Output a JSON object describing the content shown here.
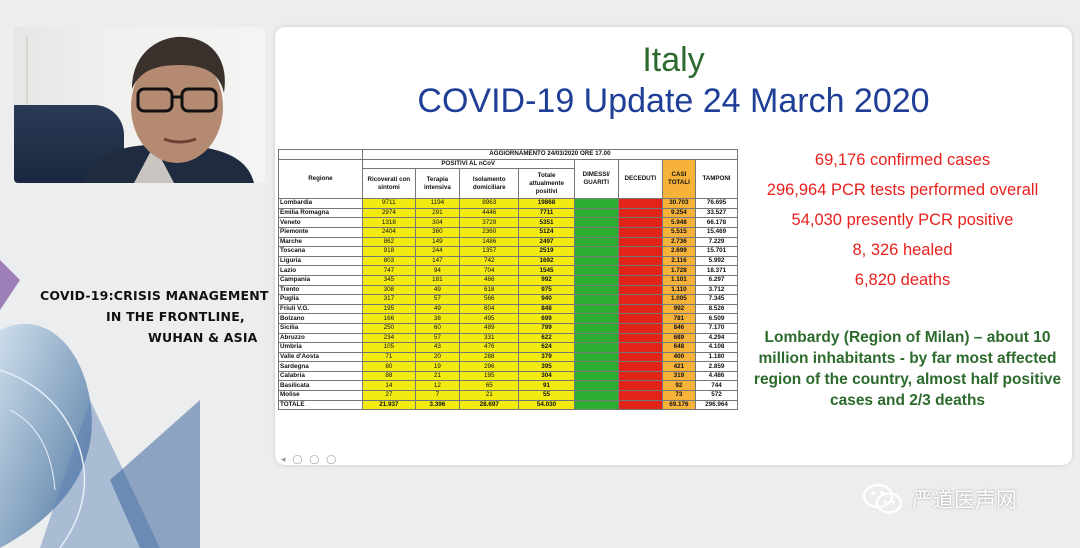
{
  "session": {
    "title_lines": [
      "COVID-19:CRISIS MANAGEMENT",
      "IN THE FRONTLINE,",
      "WUHAN & ASIA"
    ]
  },
  "slide": {
    "country": "Italy",
    "title": "COVID-19 Update 24 March 2020",
    "stats": [
      "69,176 confirmed cases",
      "296,964 PCR tests performed overall",
      "54,030 presently PCR positive",
      "8, 326 healed",
      "6,820 deaths"
    ],
    "lombardy_note": "Lombardy (Region of Milan) – about 10 million inhabitants - by far most affected region of the country, almost half positive cases and 2/3 deaths",
    "colors": {
      "title_blue": "#1f3f97",
      "country_green": "#2d6a2d",
      "stats_red": "#e8211d"
    }
  },
  "table": {
    "caption": "AGGIORNAMENTO 24/03/2020 ORE 17.00",
    "group_header": "POSITIVI AL nCoV",
    "headers": {
      "regione": "Regione",
      "ricoverati": "Ricoverati con sintomi",
      "terapia": "Terapia intensiva",
      "isolamento": "Isolamento domiciliare",
      "totale": "Totale attualmente positivi",
      "dimessi": "DIMESSI/ GUARITI",
      "deceduti": "DECEDUTI",
      "casi": "CASI TOTALI",
      "tamponi": "TAMPONI"
    },
    "rows": [
      [
        "Lombardia",
        "9711",
        "1194",
        "8963",
        "19868",
        "",
        "",
        "30.703",
        "76.695"
      ],
      [
        "Emilia Romagna",
        "2974",
        "291",
        "4446",
        "7711",
        "",
        "",
        "9.254",
        "33.527"
      ],
      [
        "Veneto",
        "1318",
        "304",
        "3729",
        "5351",
        "",
        "",
        "5.948",
        "66.178"
      ],
      [
        "Piemonte",
        "2404",
        "360",
        "2360",
        "5124",
        "",
        "",
        "5.515",
        "15.469"
      ],
      [
        "Marche",
        "862",
        "149",
        "1486",
        "2497",
        "",
        "",
        "2.736",
        "7.229"
      ],
      [
        "Toscana",
        "918",
        "244",
        "1357",
        "2519",
        "",
        "",
        "2.699",
        "15.701"
      ],
      [
        "Liguria",
        "803",
        "147",
        "742",
        "1692",
        "",
        "",
        "2.116",
        "5.992"
      ],
      [
        "Lazio",
        "747",
        "94",
        "704",
        "1545",
        "",
        "",
        "1.728",
        "18.371"
      ],
      [
        "Campania",
        "345",
        "181",
        "466",
        "992",
        "",
        "",
        "1.101",
        "6.297"
      ],
      [
        "Trento",
        "308",
        "49",
        "618",
        "975",
        "",
        "",
        "1.110",
        "3.712"
      ],
      [
        "Puglia",
        "317",
        "57",
        "566",
        "940",
        "",
        "",
        "1.005",
        "7.345"
      ],
      [
        "Friuli V.G.",
        "195",
        "49",
        "604",
        "848",
        "",
        "",
        "992",
        "8.526"
      ],
      [
        "Bolzano",
        "166",
        "38",
        "495",
        "699",
        "",
        "",
        "781",
        "6.509"
      ],
      [
        "Sicilia",
        "250",
        "60",
        "489",
        "799",
        "",
        "",
        "846",
        "7.170"
      ],
      [
        "Abruzzo",
        "234",
        "57",
        "331",
        "622",
        "",
        "",
        "689",
        "4.294"
      ],
      [
        "Umbria",
        "105",
        "43",
        "476",
        "624",
        "",
        "",
        "648",
        "4.108"
      ],
      [
        "Valle d'Aosta",
        "71",
        "20",
        "288",
        "379",
        "",
        "",
        "400",
        "1.180"
      ],
      [
        "Sardegna",
        "80",
        "19",
        "296",
        "395",
        "",
        "",
        "421",
        "2.859"
      ],
      [
        "Calabria",
        "88",
        "21",
        "195",
        "304",
        "",
        "",
        "319",
        "4.486"
      ],
      [
        "Basilicata",
        "14",
        "12",
        "65",
        "91",
        "",
        "",
        "92",
        "744"
      ],
      [
        "Molise",
        "27",
        "7",
        "21",
        "55",
        "",
        "",
        "73",
        "572"
      ]
    ],
    "total_row": [
      "TOTALE",
      "21.937",
      "3.396",
      "28.697",
      "54.030",
      "",
      "",
      "69.176",
      "296.964"
    ]
  },
  "watermark": {
    "text": "严道医声网"
  }
}
